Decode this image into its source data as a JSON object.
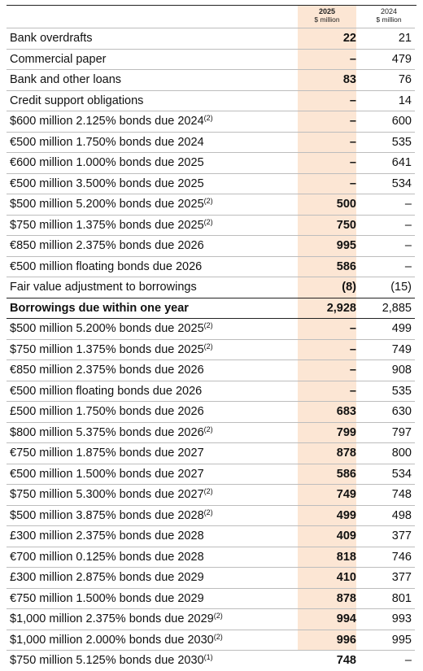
{
  "header": {
    "col_2025_year": "2025",
    "col_2025_unit": "$ million",
    "col_2024_year": "2024",
    "col_2024_unit": "$ million"
  },
  "rows": [
    {
      "label": "Bank overdrafts",
      "note": "",
      "v2025": "22",
      "v2024": "21"
    },
    {
      "label": "Commercial paper",
      "note": "",
      "v2025": "–",
      "v2024": "479"
    },
    {
      "label": "Bank and other loans",
      "note": "",
      "v2025": "83",
      "v2024": "76"
    },
    {
      "label": "Credit support obligations",
      "note": "",
      "v2025": "–",
      "v2024": "14"
    },
    {
      "label": "$600 million 2.125% bonds due 2024",
      "note": "(2)",
      "v2025": "–",
      "v2024": "600"
    },
    {
      "label": "€500 million 1.750% bonds due 2024",
      "note": "",
      "v2025": "–",
      "v2024": "535"
    },
    {
      "label": "€600 million 1.000% bonds due 2025",
      "note": "",
      "v2025": "–",
      "v2024": "641"
    },
    {
      "label": "€500 million 3.500% bonds due 2025",
      "note": "",
      "v2025": "–",
      "v2024": "534"
    },
    {
      "label": "$500 million 5.200% bonds due 2025",
      "note": "(2)",
      "v2025": "500",
      "v2024": "–"
    },
    {
      "label": "$750 million 1.375% bonds due 2025",
      "note": "(2)",
      "v2025": "750",
      "v2024": "–"
    },
    {
      "label": "€850 million 2.375% bonds due 2026",
      "note": "",
      "v2025": "995",
      "v2024": "–"
    },
    {
      "label": "€500 million floating bonds due 2026",
      "note": "",
      "v2025": "586",
      "v2024": "–"
    },
    {
      "label": "Fair value adjustment to borrowings",
      "note": "",
      "v2025": "(8)",
      "v2024": "(15)"
    },
    {
      "label": "Borrowings due within one year",
      "note": "",
      "v2025": "2,928",
      "v2024": "2,885",
      "total": true
    },
    {
      "label": "$500 million 5.200% bonds due 2025",
      "note": "(2)",
      "v2025": "–",
      "v2024": "499"
    },
    {
      "label": "$750 million 1.375% bonds due 2025",
      "note": "(2)",
      "v2025": "–",
      "v2024": "749"
    },
    {
      "label": "€850 million 2.375% bonds due 2026",
      "note": "",
      "v2025": "–",
      "v2024": "908"
    },
    {
      "label": "€500 million floating bonds due 2026",
      "note": "",
      "v2025": "–",
      "v2024": "535"
    },
    {
      "label": "£500 million 1.750% bonds due 2026",
      "note": "",
      "v2025": "683",
      "v2024": "630"
    },
    {
      "label": "$800 million 5.375% bonds due 2026",
      "note": "(2)",
      "v2025": "799",
      "v2024": "797"
    },
    {
      "label": "€750 million 1.875% bonds due 2027",
      "note": "",
      "v2025": "878",
      "v2024": "800"
    },
    {
      "label": "€500 million 1.500% bonds due 2027",
      "note": "",
      "v2025": "586",
      "v2024": "534"
    },
    {
      "label": "$750 million 5.300% bonds due 2027",
      "note": "(2)",
      "v2025": "749",
      "v2024": "748"
    },
    {
      "label": "$500 million 3.875% bonds due 2028",
      "note": "(2)",
      "v2025": "499",
      "v2024": "498"
    },
    {
      "label": "£300 million 2.375% bonds due 2028",
      "note": "",
      "v2025": "409",
      "v2024": "377"
    },
    {
      "label": "€700 million 0.125% bonds due 2028",
      "note": "",
      "v2025": "818",
      "v2024": "746"
    },
    {
      "label": "£300 million 2.875% bonds due 2029",
      "note": "",
      "v2025": "410",
      "v2024": "377"
    },
    {
      "label": "€750 million 1.500% bonds due 2029",
      "note": "",
      "v2025": "878",
      "v2024": "801"
    },
    {
      "label": "$1,000 million 2.375% bonds due 2029",
      "note": "(2)",
      "v2025": "994",
      "v2024": "993"
    },
    {
      "label": "$1,000 million 2.000% bonds due 2030",
      "note": "(2)",
      "v2025": "996",
      "v2024": "995"
    },
    {
      "label": "$750 million 5.125% bonds due 2030",
      "note": "(1)",
      "v2025": "748",
      "v2024": "–"
    }
  ]
}
